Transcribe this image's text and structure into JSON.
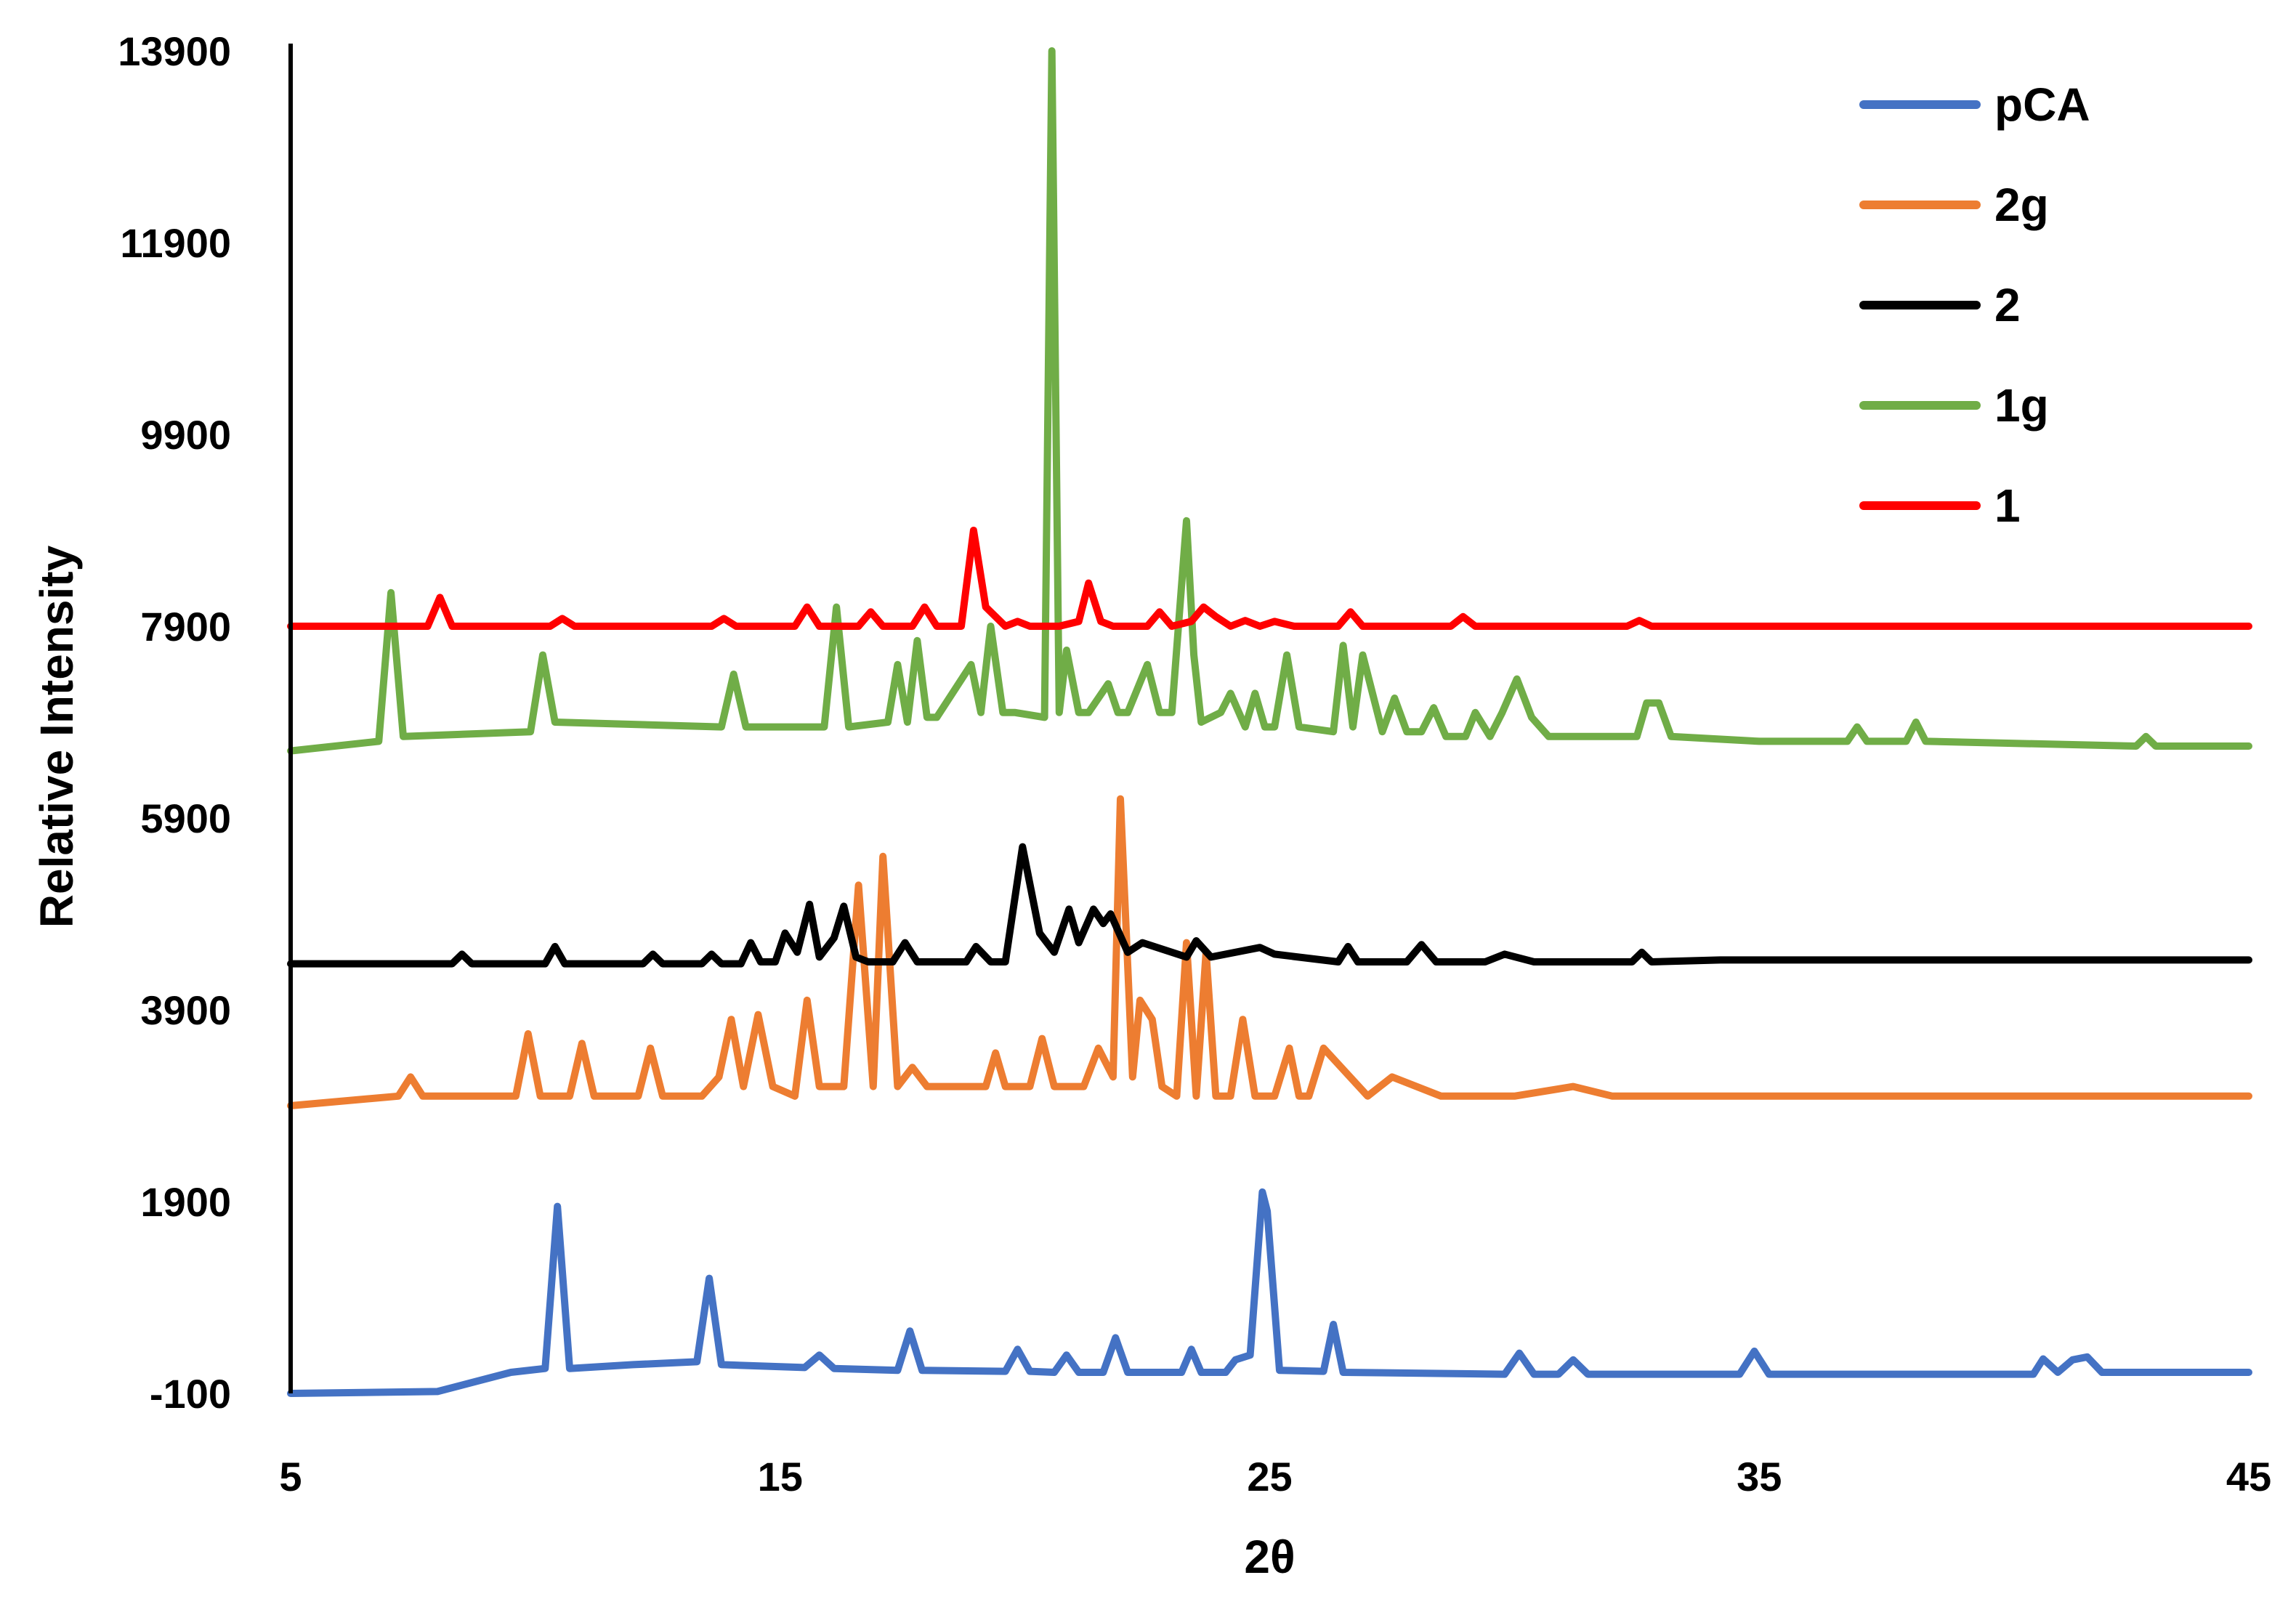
{
  "chart_data": {
    "type": "line",
    "title": "",
    "xlabel": "2θ",
    "ylabel": "Relative Intensity",
    "xlim": [
      5,
      45
    ],
    "ylim": [
      -100,
      13900
    ],
    "x_ticks": [
      5,
      15,
      25,
      35,
      45
    ],
    "y_ticks": [
      -100,
      1900,
      3900,
      5900,
      7900,
      9900,
      11900,
      13900
    ],
    "grid": false,
    "legend_position": "top-right",
    "series": [
      {
        "name": "pCA",
        "color": "#4472C4",
        "x": [
          5,
          8,
          9.5,
          10.2,
          10.45,
          10.7,
          12,
          13.3,
          13.55,
          13.8,
          15.5,
          15.8,
          16.1,
          17.4,
          17.65,
          17.9,
          19.6,
          19.85,
          20.1,
          20.6,
          20.85,
          21.1,
          21.6,
          21.85,
          22.1,
          23.2,
          23.4,
          23.6,
          24.1,
          24.3,
          24.6,
          24.85,
          24.95,
          25.2,
          26.1,
          26.3,
          26.5,
          29.8,
          30.1,
          30.4,
          30.9,
          31.2,
          31.5,
          34.6,
          34.9,
          35.2,
          40.6,
          40.8,
          41.1,
          41.4,
          41.7,
          42,
          45
        ],
        "y": [
          -100,
          -80,
          120,
          160,
          1850,
          160,
          200,
          230,
          1100,
          200,
          170,
          300,
          160,
          140,
          550,
          140,
          130,
          360,
          130,
          120,
          300,
          120,
          120,
          480,
          120,
          120,
          360,
          120,
          120,
          250,
          300,
          2000,
          1800,
          140,
          130,
          620,
          120,
          100,
          320,
          100,
          100,
          250,
          100,
          100,
          340,
          100,
          100,
          260,
          120,
          250,
          280,
          120,
          120
        ]
      },
      {
        "name": "2g",
        "color": "#ED7D31",
        "x": [
          5,
          7.2,
          7.45,
          7.7,
          9.6,
          9.85,
          10.1,
          10.7,
          10.95,
          11.2,
          12.1,
          12.35,
          12.6,
          13.4,
          13.75,
          14,
          14.25,
          14.55,
          14.85,
          15.3,
          15.55,
          15.8,
          16.3,
          16.6,
          16.9,
          17.1,
          17.4,
          17.7,
          18,
          19.2,
          19.4,
          19.6,
          20.1,
          20.35,
          20.6,
          21.2,
          21.5,
          21.8,
          21.95,
          22.2,
          22.35,
          22.6,
          22.8,
          23.1,
          23.3,
          23.5,
          23.7,
          23.9,
          24.2,
          24.45,
          24.7,
          25.1,
          25.4,
          25.6,
          25.8,
          26.1,
          27,
          27.5,
          28.5,
          30,
          31.2,
          32,
          45
        ],
        "y": [
          2900,
          3000,
          3200,
          3000,
          3000,
          3650,
          3000,
          3000,
          3550,
          3000,
          3000,
          3500,
          3000,
          3000,
          3200,
          3800,
          3100,
          3850,
          3100,
          3000,
          4000,
          3100,
          3100,
          5200,
          3100,
          5500,
          3100,
          3300,
          3100,
          3100,
          3450,
          3100,
          3100,
          3600,
          3100,
          3100,
          3500,
          3200,
          6100,
          3200,
          4000,
          3800,
          3100,
          3000,
          4600,
          3000,
          4500,
          3000,
          3000,
          3800,
          3000,
          3000,
          3500,
          3000,
          3000,
          3500,
          3000,
          3200,
          3000,
          3000,
          3100,
          3000,
          3000
        ]
      },
      {
        "name": "2",
        "color": "#000000",
        "x": [
          5,
          8.3,
          8.5,
          8.7,
          10.2,
          10.4,
          10.6,
          12.2,
          12.4,
          12.6,
          13.4,
          13.6,
          13.8,
          14.2,
          14.4,
          14.6,
          14.9,
          15.1,
          15.35,
          15.6,
          15.8,
          16.1,
          16.3,
          16.55,
          16.8,
          17.3,
          17.55,
          17.8,
          18.8,
          19,
          19.3,
          19.6,
          19.95,
          20.3,
          20.6,
          20.9,
          21.1,
          21.4,
          21.6,
          21.75,
          22.1,
          22.4,
          23.3,
          23.5,
          23.8,
          24.8,
          25.1,
          26.4,
          26.6,
          26.8,
          27.8,
          28.1,
          28.4,
          29.4,
          29.8,
          30.4,
          32.4,
          32.6,
          32.8,
          34.2,
          45
        ],
        "y": [
          4380,
          4380,
          4480,
          4380,
          4380,
          4560,
          4380,
          4380,
          4480,
          4380,
          4380,
          4480,
          4380,
          4380,
          4600,
          4400,
          4400,
          4700,
          4500,
          5000,
          4450,
          4650,
          4980,
          4450,
          4400,
          4400,
          4600,
          4400,
          4400,
          4560,
          4400,
          4400,
          5600,
          4700,
          4500,
          4950,
          4600,
          4950,
          4800,
          4900,
          4500,
          4600,
          4450,
          4620,
          4450,
          4550,
          4480,
          4400,
          4560,
          4400,
          4400,
          4580,
          4400,
          4400,
          4480,
          4400,
          4400,
          4500,
          4400,
          4420,
          4420
        ]
      },
      {
        "name": "1g",
        "color": "#70AD47",
        "x": [
          5,
          6.8,
          7.05,
          7.3,
          9.9,
          10.15,
          10.4,
          13.8,
          14.05,
          14.3,
          15.9,
          16.15,
          16.4,
          17.2,
          17.4,
          17.6,
          17.8,
          18,
          18.2,
          18.9,
          19.1,
          19.3,
          19.55,
          19.8,
          20.4,
          20.55,
          20.7,
          20.85,
          21.1,
          21.3,
          21.7,
          21.9,
          22.1,
          22.5,
          22.75,
          23,
          23.3,
          23.45,
          23.6,
          24,
          24.2,
          24.5,
          24.7,
          24.9,
          25.1,
          25.35,
          25.6,
          26.3,
          26.5,
          26.7,
          26.9,
          27.3,
          27.55,
          27.8,
          28.1,
          28.35,
          28.6,
          29,
          29.2,
          29.5,
          29.75,
          30.05,
          30.35,
          30.7,
          32.5,
          32.7,
          32.95,
          33.2,
          35,
          36.8,
          37,
          37.2,
          38,
          38.2,
          38.4,
          42.7,
          42.9,
          43.1,
          45
        ],
        "y": [
          6600,
          6700,
          8250,
          6750,
          6800,
          7600,
          6900,
          6850,
          7400,
          6850,
          6850,
          8100,
          6850,
          6900,
          7500,
          6900,
          7750,
          6950,
          6950,
          7500,
          7000,
          7900,
          7000,
          7000,
          6950,
          13900,
          7000,
          7650,
          7000,
          7000,
          7300,
          7000,
          7000,
          7500,
          7000,
          7000,
          9000,
          7600,
          6900,
          7000,
          7200,
          6850,
          7200,
          6850,
          6850,
          7600,
          6850,
          6800,
          7700,
          6850,
          7600,
          6800,
          7150,
          6800,
          6800,
          7050,
          6750,
          6750,
          7000,
          6750,
          7000,
          7350,
          6950,
          6750,
          6750,
          7100,
          7100,
          6750,
          6700,
          6700,
          6850,
          6700,
          6700,
          6900,
          6700,
          6650,
          6750,
          6650,
          6650
        ]
      },
      {
        "name": "1",
        "color": "#FF0000",
        "x": [
          5,
          7.8,
          8.05,
          8.3,
          10.3,
          10.55,
          10.8,
          13.6,
          13.85,
          14.1,
          15.3,
          15.55,
          15.8,
          16.6,
          16.85,
          17.1,
          17.7,
          17.95,
          18.2,
          18.7,
          18.95,
          19.2,
          19.6,
          19.85,
          20.1,
          20.7,
          21.1,
          21.3,
          21.55,
          21.8,
          22.5,
          22.75,
          23,
          23.4,
          23.65,
          23.9,
          24.2,
          24.5,
          24.8,
          25.1,
          25.5,
          26.4,
          26.65,
          26.9,
          28.7,
          28.95,
          29.2,
          32.3,
          32.55,
          32.8,
          45
        ],
        "y": [
          7900,
          7900,
          8200,
          7900,
          7900,
          7980,
          7900,
          7900,
          7980,
          7900,
          7900,
          8100,
          7900,
          7900,
          8050,
          7900,
          7900,
          8100,
          7900,
          7900,
          8900,
          8100,
          7900,
          7950,
          7900,
          7900,
          7950,
          8350,
          7950,
          7900,
          7900,
          8050,
          7900,
          7950,
          8100,
          8000,
          7900,
          7960,
          7900,
          7950,
          7900,
          7900,
          8050,
          7900,
          7900,
          8000,
          7900,
          7900,
          7960,
          7900,
          7900
        ]
      }
    ]
  }
}
